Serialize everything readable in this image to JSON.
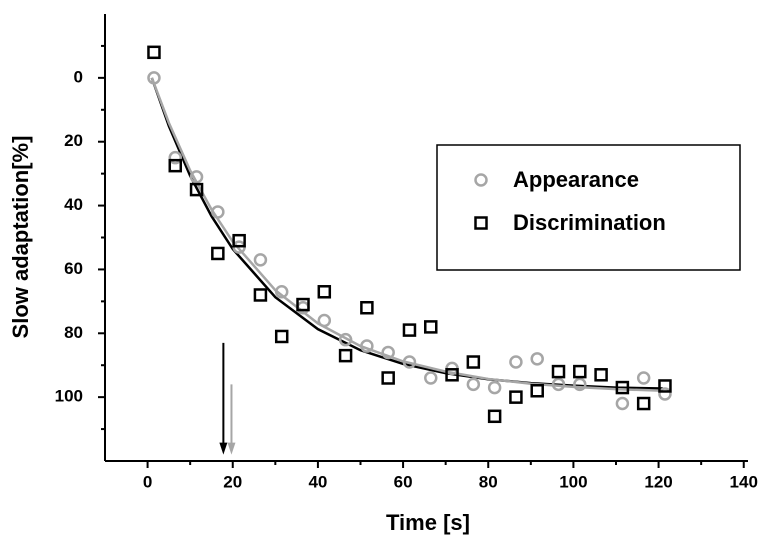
{
  "chart_data": {
    "type": "scatter",
    "xlabel": "Time [s]",
    "ylabel": "Slow adaptation[%]",
    "xlim": [
      -10,
      141
    ],
    "ylim": [
      -20,
      120
    ],
    "y_inverted": true,
    "xticks": [
      0,
      20,
      40,
      60,
      80,
      100,
      120,
      140
    ],
    "yticks": [
      0,
      20,
      40,
      60,
      80,
      100
    ],
    "xticks_minor": [
      10,
      30,
      50,
      70,
      90,
      110,
      130
    ],
    "yticks_minor": [
      -10,
      10,
      30,
      50,
      70,
      90,
      110
    ],
    "legend": "right",
    "series": [
      {
        "name": "Appearance",
        "color": "#a6a6a6",
        "marker": "circle",
        "x": [
          1.5,
          6.5,
          11.5,
          16.5,
          21.5,
          26.5,
          31.5,
          36.5,
          41.5,
          46.5,
          51.5,
          56.5,
          61.5,
          66.5,
          71.5,
          76.5,
          81.5,
          86.5,
          91.5,
          96.5,
          101.5,
          111.5,
          116.5,
          121.5
        ],
        "values": [
          0,
          25,
          31,
          42,
          53,
          57,
          67,
          72,
          76,
          82,
          84,
          86,
          89,
          94,
          91,
          96,
          97,
          89,
          88,
          96,
          96,
          102,
          94,
          99
        ]
      },
      {
        "name": "Discrimination",
        "color": "#000000",
        "marker": "square",
        "x": [
          1.5,
          6.5,
          11.5,
          16.5,
          21.5,
          26.5,
          31.5,
          36.5,
          41.5,
          46.5,
          51.5,
          56.5,
          61.5,
          66.5,
          71.5,
          76.5,
          81.5,
          86.5,
          91.5,
          96.5,
          101.5,
          106.5,
          111.5,
          116.5,
          121.5
        ],
        "values": [
          -8,
          27.5,
          35,
          55,
          51,
          68,
          81,
          71,
          67,
          87,
          72,
          94,
          79,
          78,
          93,
          89,
          106,
          100,
          98,
          92,
          92,
          93,
          97,
          102,
          96.5
        ]
      }
    ],
    "fits": [
      {
        "color": "#000000",
        "x": [
          1,
          5,
          10,
          15,
          20,
          30,
          40,
          50,
          60,
          70,
          80,
          90,
          100,
          110,
          121
        ],
        "values": [
          0,
          15.1,
          30.7,
          43.3,
          53.6,
          68.7,
          78.7,
          85.3,
          89.6,
          92.5,
          94.4,
          95.6,
          96.4,
          97.0,
          97.3
        ]
      },
      {
        "color": "#a6a6a6",
        "x": [
          1,
          5,
          10,
          15,
          20,
          30,
          40,
          50,
          60,
          70,
          80,
          90,
          100,
          110,
          121
        ],
        "values": [
          0,
          14.1,
          29.0,
          41.2,
          51.3,
          66.5,
          76.9,
          84.0,
          88.8,
          92.0,
          94.3,
          95.8,
          96.8,
          97.5,
          98.0
        ]
      }
    ],
    "arrows": [
      {
        "color": "#000000",
        "x": 17.8,
        "from": 83,
        "to": 118
      },
      {
        "color": "#a6a6a6",
        "x": 19.7,
        "from": 96,
        "to": 118
      }
    ]
  }
}
